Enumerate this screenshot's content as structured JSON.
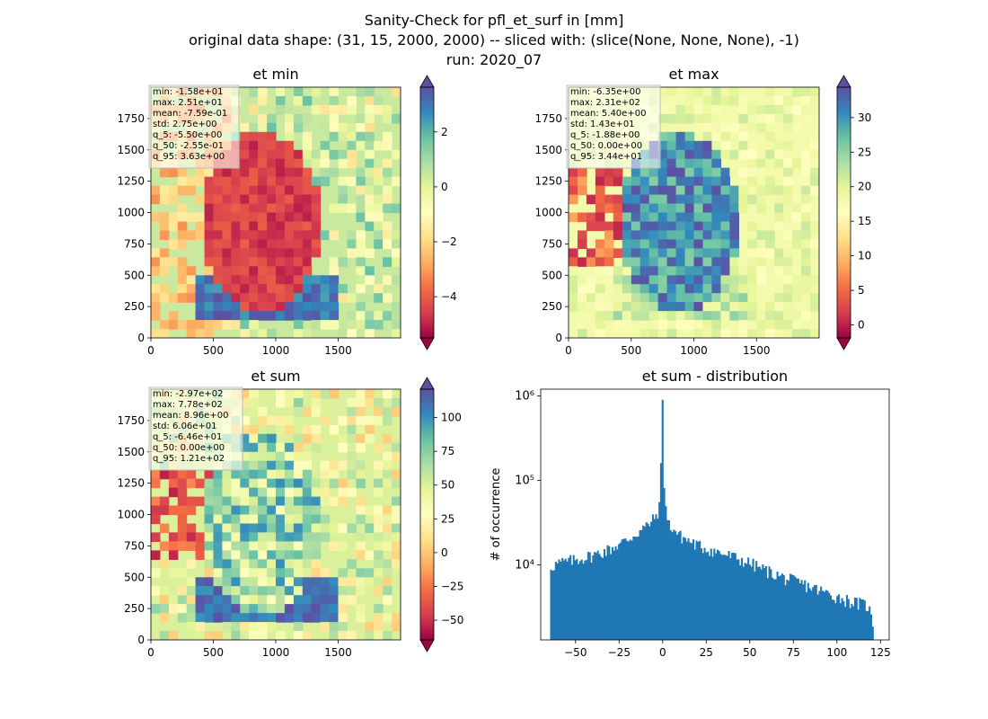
{
  "figure": {
    "suptitle_lines": [
      "Sanity-Check for pfl_et_surf in [mm]",
      "original data shape: (31, 15, 2000, 2000) -- sliced with: (slice(None, None, None), -1)",
      "run: 2020_07"
    ]
  },
  "chart_data": [
    {
      "type": "heatmap",
      "title": "et min",
      "colormap": "Spectral",
      "xlim": [
        0,
        2000
      ],
      "ylim": [
        0,
        2000
      ],
      "x_ticks": [
        0,
        500,
        1000,
        1500
      ],
      "y_ticks": [
        0,
        250,
        500,
        750,
        1000,
        1250,
        1500,
        1750
      ],
      "colorbar": {
        "min": -5.5,
        "max": 3.63,
        "ticks": [
          -4,
          -2,
          0,
          2
        ],
        "extend": "both"
      },
      "stats_lines": [
        "min: -1.58e+01",
        "max: 2.51e+01",
        "mean: -7.59e-01",
        "std: 2.75e+00",
        "q_5: -5.50e+00",
        "q_50: -2.55e-01",
        "q_95: 3.63e+00"
      ]
    },
    {
      "type": "heatmap",
      "title": "et max",
      "colormap": "Spectral",
      "xlim": [
        0,
        2000
      ],
      "ylim": [
        0,
        2000
      ],
      "x_ticks": [
        0,
        500,
        1000,
        1500
      ],
      "y_ticks": [
        0,
        250,
        500,
        750,
        1000,
        1250,
        1500,
        1750
      ],
      "colorbar": {
        "min": -1.88,
        "max": 34.4,
        "ticks": [
          0,
          5,
          10,
          15,
          20,
          25,
          30
        ],
        "extend": "both"
      },
      "stats_lines": [
        "min: -6.35e+00",
        "max: 2.31e+02",
        "mean: 5.40e+00",
        "std: 1.43e+01",
        "q_5: -1.88e+00",
        "q_50: 0.00e+00",
        "q_95: 3.44e+01"
      ]
    },
    {
      "type": "heatmap",
      "title": "et sum",
      "colormap": "Spectral",
      "xlim": [
        0,
        2000
      ],
      "ylim": [
        0,
        2000
      ],
      "x_ticks": [
        0,
        500,
        1000,
        1500
      ],
      "y_ticks": [
        0,
        250,
        500,
        750,
        1000,
        1250,
        1500,
        1750
      ],
      "colorbar": {
        "min": -64.6,
        "max": 121,
        "ticks": [
          -50,
          -25,
          0,
          25,
          50,
          75,
          100
        ],
        "extend": "both"
      },
      "stats_lines": [
        "min: -2.97e+02",
        "max: 7.78e+02",
        "mean: 8.96e+00",
        "std: 6.06e+01",
        "q_5: -6.46e+01",
        "q_50: 0.00e+00",
        "q_95: 1.21e+02"
      ]
    },
    {
      "type": "bar",
      "title": "et sum - distribution",
      "ylabel": "# of occurrence",
      "xlabel": "",
      "yscale": "log",
      "xlim": [
        -70,
        130
      ],
      "ylim": [
        1300,
        1200000
      ],
      "x_ticks": [
        -50,
        -25,
        0,
        25,
        50,
        75,
        100,
        125
      ],
      "y_ticks": [
        {
          "value": 10000,
          "label": "10⁴"
        },
        {
          "value": 100000,
          "label": "10⁵"
        },
        {
          "value": 1000000,
          "label": "10⁶"
        }
      ],
      "bin_edges_range": [
        -64.6,
        121
      ],
      "bins": 200,
      "color": "#1f77b4",
      "profile_points": [
        [
          -64.6,
          9500
        ],
        [
          -60,
          10500
        ],
        [
          -50,
          11500
        ],
        [
          -40,
          13000
        ],
        [
          -30,
          15500
        ],
        [
          -20,
          20000
        ],
        [
          -10,
          28000
        ],
        [
          -5,
          35000
        ],
        [
          -2,
          46000
        ],
        [
          -1,
          150000
        ],
        [
          0,
          900000
        ],
        [
          1,
          60000
        ],
        [
          3,
          31000
        ],
        [
          10,
          22000
        ],
        [
          20,
          17000
        ],
        [
          30,
          14500
        ],
        [
          40,
          12500
        ],
        [
          50,
          10500
        ],
        [
          60,
          8500
        ],
        [
          70,
          7000
        ],
        [
          80,
          6000
        ],
        [
          90,
          5000
        ],
        [
          100,
          4200
        ],
        [
          110,
          3600
        ],
        [
          118,
          3300
        ],
        [
          121,
          1800
        ]
      ]
    }
  ]
}
